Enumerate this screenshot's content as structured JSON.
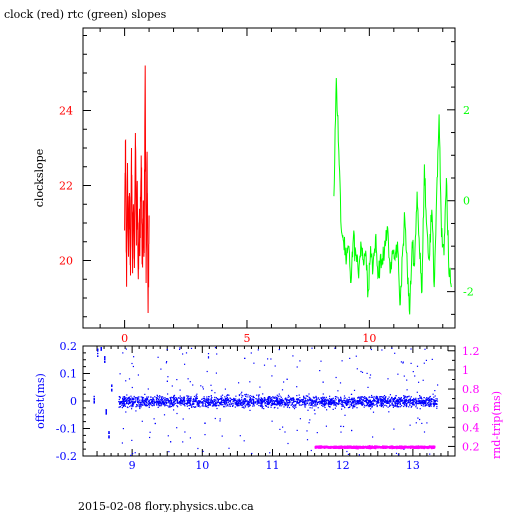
{
  "page": {
    "title": "clock (red) rtc (green) slopes",
    "footer": "2015-02-08 flory.physics.ubc.ca"
  },
  "colors": {
    "clock": "#ff0000",
    "rtc": "#00ff00",
    "offset": "#0000ff",
    "rndtrip": "#ff00ff",
    "axis": "#000000"
  },
  "chart_data": [
    {
      "type": "line",
      "title": "clock (red) rtc (green) slopes",
      "ylabel": "clockslope",
      "xlim": [
        -1.7,
        13.5
      ],
      "ylim": [
        18.2,
        26.2
      ],
      "xticks": [
        0,
        5,
        10
      ],
      "xtick_labels": [
        "0",
        "5",
        "10"
      ],
      "yticks": [
        20,
        22,
        24
      ],
      "ytick_labels": [
        "20",
        "22",
        "24"
      ],
      "y2lim": [
        -2.8,
        3.8
      ],
      "y2ticks": [
        -2,
        0,
        2
      ],
      "y2tick_labels": [
        "-2",
        "0",
        "2"
      ],
      "series": [
        {
          "axis": "left",
          "color": "#ff0000",
          "x": [
            0.0,
            0.04,
            0.08,
            0.12,
            0.16,
            0.2,
            0.24,
            0.28,
            0.32,
            0.36,
            0.4,
            0.44,
            0.48,
            0.52,
            0.56,
            0.6,
            0.64,
            0.68,
            0.72,
            0.76,
            0.8,
            0.84,
            0.88,
            0.92,
            0.96,
            1.0
          ],
          "y": [
            20.8,
            23.2,
            19.3,
            22.6,
            20.1,
            21.8,
            19.6,
            23.0,
            20.3,
            21.5,
            19.8,
            23.4,
            20.4,
            22.1,
            19.5,
            21.0,
            20.6,
            22.8,
            19.9,
            21.6,
            20.2,
            25.2,
            19.4,
            22.9,
            18.6,
            21.2
          ]
        },
        {
          "axis": "right",
          "color": "#00ff00",
          "x": [
            8.55,
            8.65,
            8.75,
            8.85,
            8.95,
            9.05,
            9.15,
            9.25,
            9.35,
            9.45,
            9.55,
            9.65,
            9.75,
            9.85,
            9.95,
            10.05,
            10.15,
            10.25,
            10.35,
            10.45,
            10.55,
            10.65,
            10.75,
            10.85,
            10.95,
            11.05,
            11.15,
            11.25,
            11.35,
            11.45,
            11.55,
            11.65,
            11.75,
            11.85,
            11.95,
            12.05,
            12.15,
            12.25,
            12.35,
            12.45,
            12.55,
            12.65,
            12.75,
            12.85,
            12.95,
            13.05,
            13.15,
            13.25,
            13.35
          ],
          "y": [
            0.1,
            2.7,
            1.1,
            -0.6,
            -0.9,
            -1.4,
            -1.0,
            -1.8,
            -0.8,
            -1.2,
            -1.6,
            -0.9,
            -1.3,
            -1.1,
            -2.0,
            -1.0,
            -1.5,
            -0.8,
            -1.7,
            -1.2,
            -1.4,
            -1.0,
            -0.6,
            -1.6,
            -1.1,
            -1.3,
            -0.9,
            -2.3,
            -1.2,
            -0.4,
            -1.5,
            -2.5,
            -0.9,
            -1.4,
            0.2,
            -1.1,
            -2.0,
            0.8,
            -0.6,
            -1.3,
            -0.2,
            -1.9,
            0.1,
            1.9,
            -0.8,
            -1.2,
            0.5,
            -1.6,
            -1.9
          ]
        }
      ]
    },
    {
      "type": "scatter",
      "ylabel": "offset(ms)",
      "y2label": "rnd-trip(ms)",
      "xlim": [
        8.3,
        13.6
      ],
      "ylim": [
        -0.2,
        0.2
      ],
      "xticks": [
        9,
        10,
        11,
        12,
        13
      ],
      "xtick_labels": [
        "9",
        "10",
        "11",
        "12",
        "13"
      ],
      "yticks": [
        -0.2,
        -0.1,
        0,
        0.1,
        0.2
      ],
      "ytick_labels": [
        "-0.2",
        "-0.1",
        "0",
        "0.1",
        "0.2"
      ],
      "y2lim": [
        0.1,
        1.25
      ],
      "y2ticks": [
        0.2,
        0.4,
        0.6,
        0.8,
        1.0,
        1.2
      ],
      "y2tick_labels": [
        "0.2",
        "0.4",
        "0.6",
        "0.8",
        "1",
        "1.2"
      ],
      "series": [
        {
          "axis": "left",
          "color": "#0000ff",
          "x_range": [
            8.8,
            13.35
          ],
          "y_center": 0.0,
          "y_spread": 0.035,
          "isolated_x": [
            8.45,
            8.5,
            8.55,
            8.6,
            8.62,
            8.66,
            8.7
          ],
          "isolated_y": [
            0.01,
            0.18,
            0.2,
            0.15,
            -0.03,
            -0.12,
            0.05
          ]
        },
        {
          "axis": "right",
          "color": "#ff00ff",
          "x_range": [
            11.6,
            13.3
          ],
          "y_center": 0.2,
          "y_spread": 0.018
        }
      ]
    }
  ]
}
